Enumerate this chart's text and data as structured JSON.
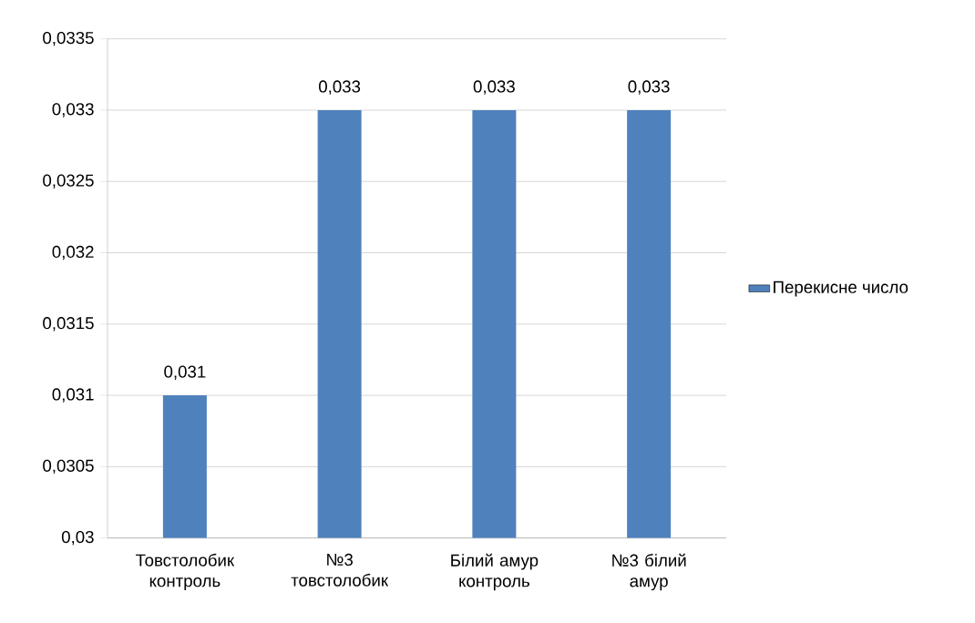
{
  "chart_data": {
    "type": "bar",
    "categories": [
      "Товстолобик контроль",
      "№3 товстолобик",
      "Білий амур контроль",
      "№3 білий амур"
    ],
    "series": [
      {
        "name": "Перекисне число",
        "color": "#4f81bd",
        "values": [
          0.031,
          0.033,
          0.033,
          0.033
        ]
      }
    ],
    "value_labels": [
      "0,031",
      "0,033",
      "0,033",
      "0,033"
    ],
    "ylim": [
      0.03,
      0.0335
    ],
    "yticks": [
      {
        "value": 0.03,
        "label": "0,03"
      },
      {
        "value": 0.0305,
        "label": "0,0305"
      },
      {
        "value": 0.031,
        "label": "0,031"
      },
      {
        "value": 0.0315,
        "label": "0,0315"
      },
      {
        "value": 0.032,
        "label": "0,032"
      },
      {
        "value": 0.0325,
        "label": "0,0325"
      },
      {
        "value": 0.033,
        "label": "0,033"
      },
      {
        "value": 0.0335,
        "label": "0,0335"
      }
    ],
    "grid": "y",
    "legend": "right"
  }
}
